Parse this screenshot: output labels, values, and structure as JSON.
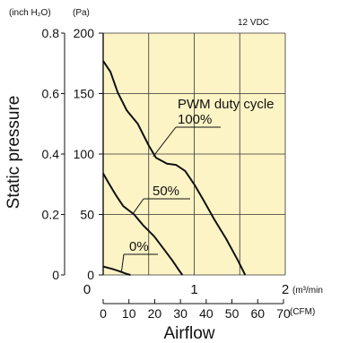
{
  "chart_data": {
    "type": "line",
    "condition_label": "12 VDC",
    "legend_title": "PWM duty cycle",
    "ylabel": "Static pressure",
    "xlabel": "Airflow",
    "y_unit_inch": "(inch H₂O)",
    "y_unit_pa": "(Pa)",
    "x_unit_m3": "(m³/min",
    "x_unit_cfm": "(CFM)",
    "yticks_inch": [
      "0.8",
      "0.6",
      "0.4",
      "0.2",
      "0"
    ],
    "yticks_pa": [
      "200",
      "150",
      "100",
      "50",
      "0"
    ],
    "xticks_m3": [
      "0",
      "1",
      "2"
    ],
    "xticks_cfm": [
      "0",
      "10",
      "20",
      "30",
      "40",
      "50",
      "60",
      "70"
    ],
    "xlim_m3": [
      0,
      2
    ],
    "ylim_pa": [
      0,
      200
    ],
    "grid": true,
    "series": [
      {
        "name": "100%",
        "points": [
          [
            0,
            177
          ],
          [
            0.08,
            168
          ],
          [
            0.16,
            151
          ],
          [
            0.26,
            136
          ],
          [
            0.38,
            125
          ],
          [
            0.5,
            107
          ],
          [
            0.58,
            97
          ],
          [
            0.7,
            92
          ],
          [
            0.8,
            91
          ],
          [
            0.9,
            86
          ],
          [
            1.0,
            75
          ],
          [
            1.1,
            62
          ],
          [
            1.22,
            46
          ],
          [
            1.35,
            30
          ],
          [
            1.48,
            12
          ],
          [
            1.56,
            0
          ]
        ]
      },
      {
        "name": "50%",
        "points": [
          [
            0,
            84
          ],
          [
            0.06,
            76
          ],
          [
            0.14,
            66
          ],
          [
            0.22,
            57
          ],
          [
            0.34,
            50
          ],
          [
            0.44,
            41
          ],
          [
            0.56,
            32
          ],
          [
            0.66,
            22
          ],
          [
            0.76,
            12
          ],
          [
            0.84,
            3
          ],
          [
            0.87,
            0
          ]
        ]
      },
      {
        "name": "0%",
        "points": [
          [
            0,
            7
          ],
          [
            0.1,
            5
          ],
          [
            0.18,
            3
          ],
          [
            0.25,
            1
          ],
          [
            0.3,
            0
          ]
        ]
      }
    ],
    "series_label_anchors": [
      {
        "name": "100%",
        "at": [
          0.55,
          98
        ]
      },
      {
        "name": "50%",
        "at": [
          0.33,
          51
        ]
      },
      {
        "name": "0%",
        "at": [
          0.2,
          2
        ]
      }
    ]
  }
}
